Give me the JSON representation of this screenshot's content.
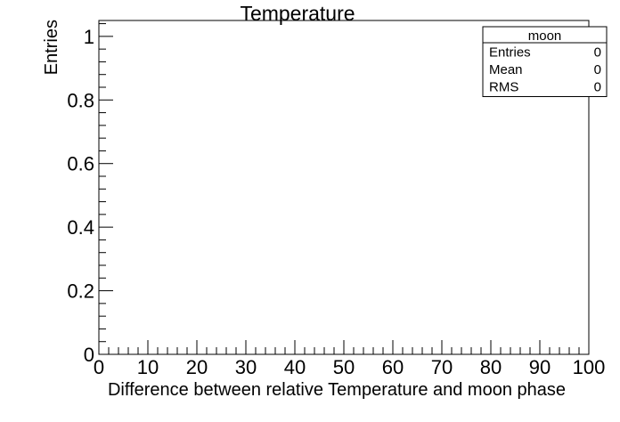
{
  "chart_data": {
    "type": "bar",
    "title": "Temperature",
    "xlabel": "Difference between relative Temperature and moon phase",
    "ylabel": "Entries",
    "xlim": [
      0,
      100
    ],
    "ylim": [
      0,
      1.05
    ],
    "x_ticks": [
      0,
      10,
      20,
      30,
      40,
      50,
      60,
      70,
      80,
      90,
      100
    ],
    "y_ticks": [
      0,
      0.2,
      0.4,
      0.6,
      0.8,
      1
    ],
    "x_tick_labels": [
      "0",
      "10",
      "20",
      "30",
      "40",
      "50",
      "60",
      "70",
      "80",
      "90",
      "100"
    ],
    "y_tick_labels": [
      "0",
      "0.2",
      "0.4",
      "0.6",
      "0.8",
      "1"
    ],
    "values": [],
    "grid": false,
    "legend_placement": "top-right",
    "stats_box": {
      "name": "moon",
      "rows": [
        {
          "label": "Entries",
          "value": "0"
        },
        {
          "label": "Mean",
          "value": "0"
        },
        {
          "label": "RMS",
          "value": "0"
        }
      ]
    }
  }
}
